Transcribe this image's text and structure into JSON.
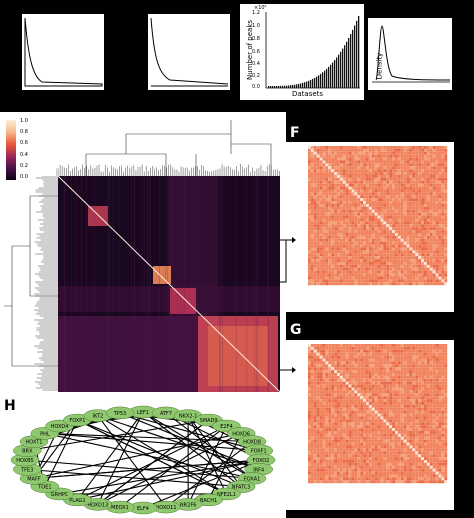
{
  "panels": {
    "top": [
      {
        "id": "t1",
        "ylabel": "",
        "xlabel": ""
      },
      {
        "id": "t2",
        "ylabel": "",
        "xlabel": ""
      },
      {
        "id": "t3",
        "ylabel": "Number of peaks",
        "xlabel": "Datasets",
        "sci": "×10⁵",
        "ticks": [
          "1.2",
          "1.0",
          "0.8",
          "0.6",
          "0.4",
          "0.2",
          "0.0"
        ]
      },
      {
        "id": "t4",
        "ylabel": "Density",
        "xlabel": ""
      }
    ],
    "colorbar": {
      "ticks": [
        "1.0",
        "0.8",
        "0.6",
        "0.4",
        "0.2",
        "0.0"
      ]
    },
    "F": {
      "letter": "F"
    },
    "G": {
      "letter": "G"
    },
    "H": {
      "letter": "H"
    }
  },
  "colors": {
    "heat_dark": "#1a0820",
    "heat_mid": "#7a1f57",
    "heat_hot": "#e85c3a",
    "heat_light": "#f6b88c",
    "mini_base": "#f1845e",
    "mini_diag": "#fbe3d5",
    "node_fill": "#8fc86e",
    "node_stroke": "#4a7a30"
  },
  "network": {
    "nodes": [
      "LEF1",
      "ATF7",
      "NKX2-1",
      "SMAD9",
      "E2F4",
      "HOXD6",
      "HOXD8",
      "FOXF1",
      "FOXO2",
      "IRF4",
      "FOXA1",
      "NFATC3",
      "NFE2L1",
      "BACH1",
      "NR2F6",
      "HOXD11",
      "ELF4",
      "MEOX1",
      "HOXD13",
      "PLAG1",
      "GRHPC",
      "TOE1",
      "MAFF",
      "TFE3",
      "HOXB5",
      "BRX",
      "HOXT1",
      "PHL",
      "HOXD4",
      "FOXP1",
      "IKT2",
      "TP53"
    ]
  }
}
